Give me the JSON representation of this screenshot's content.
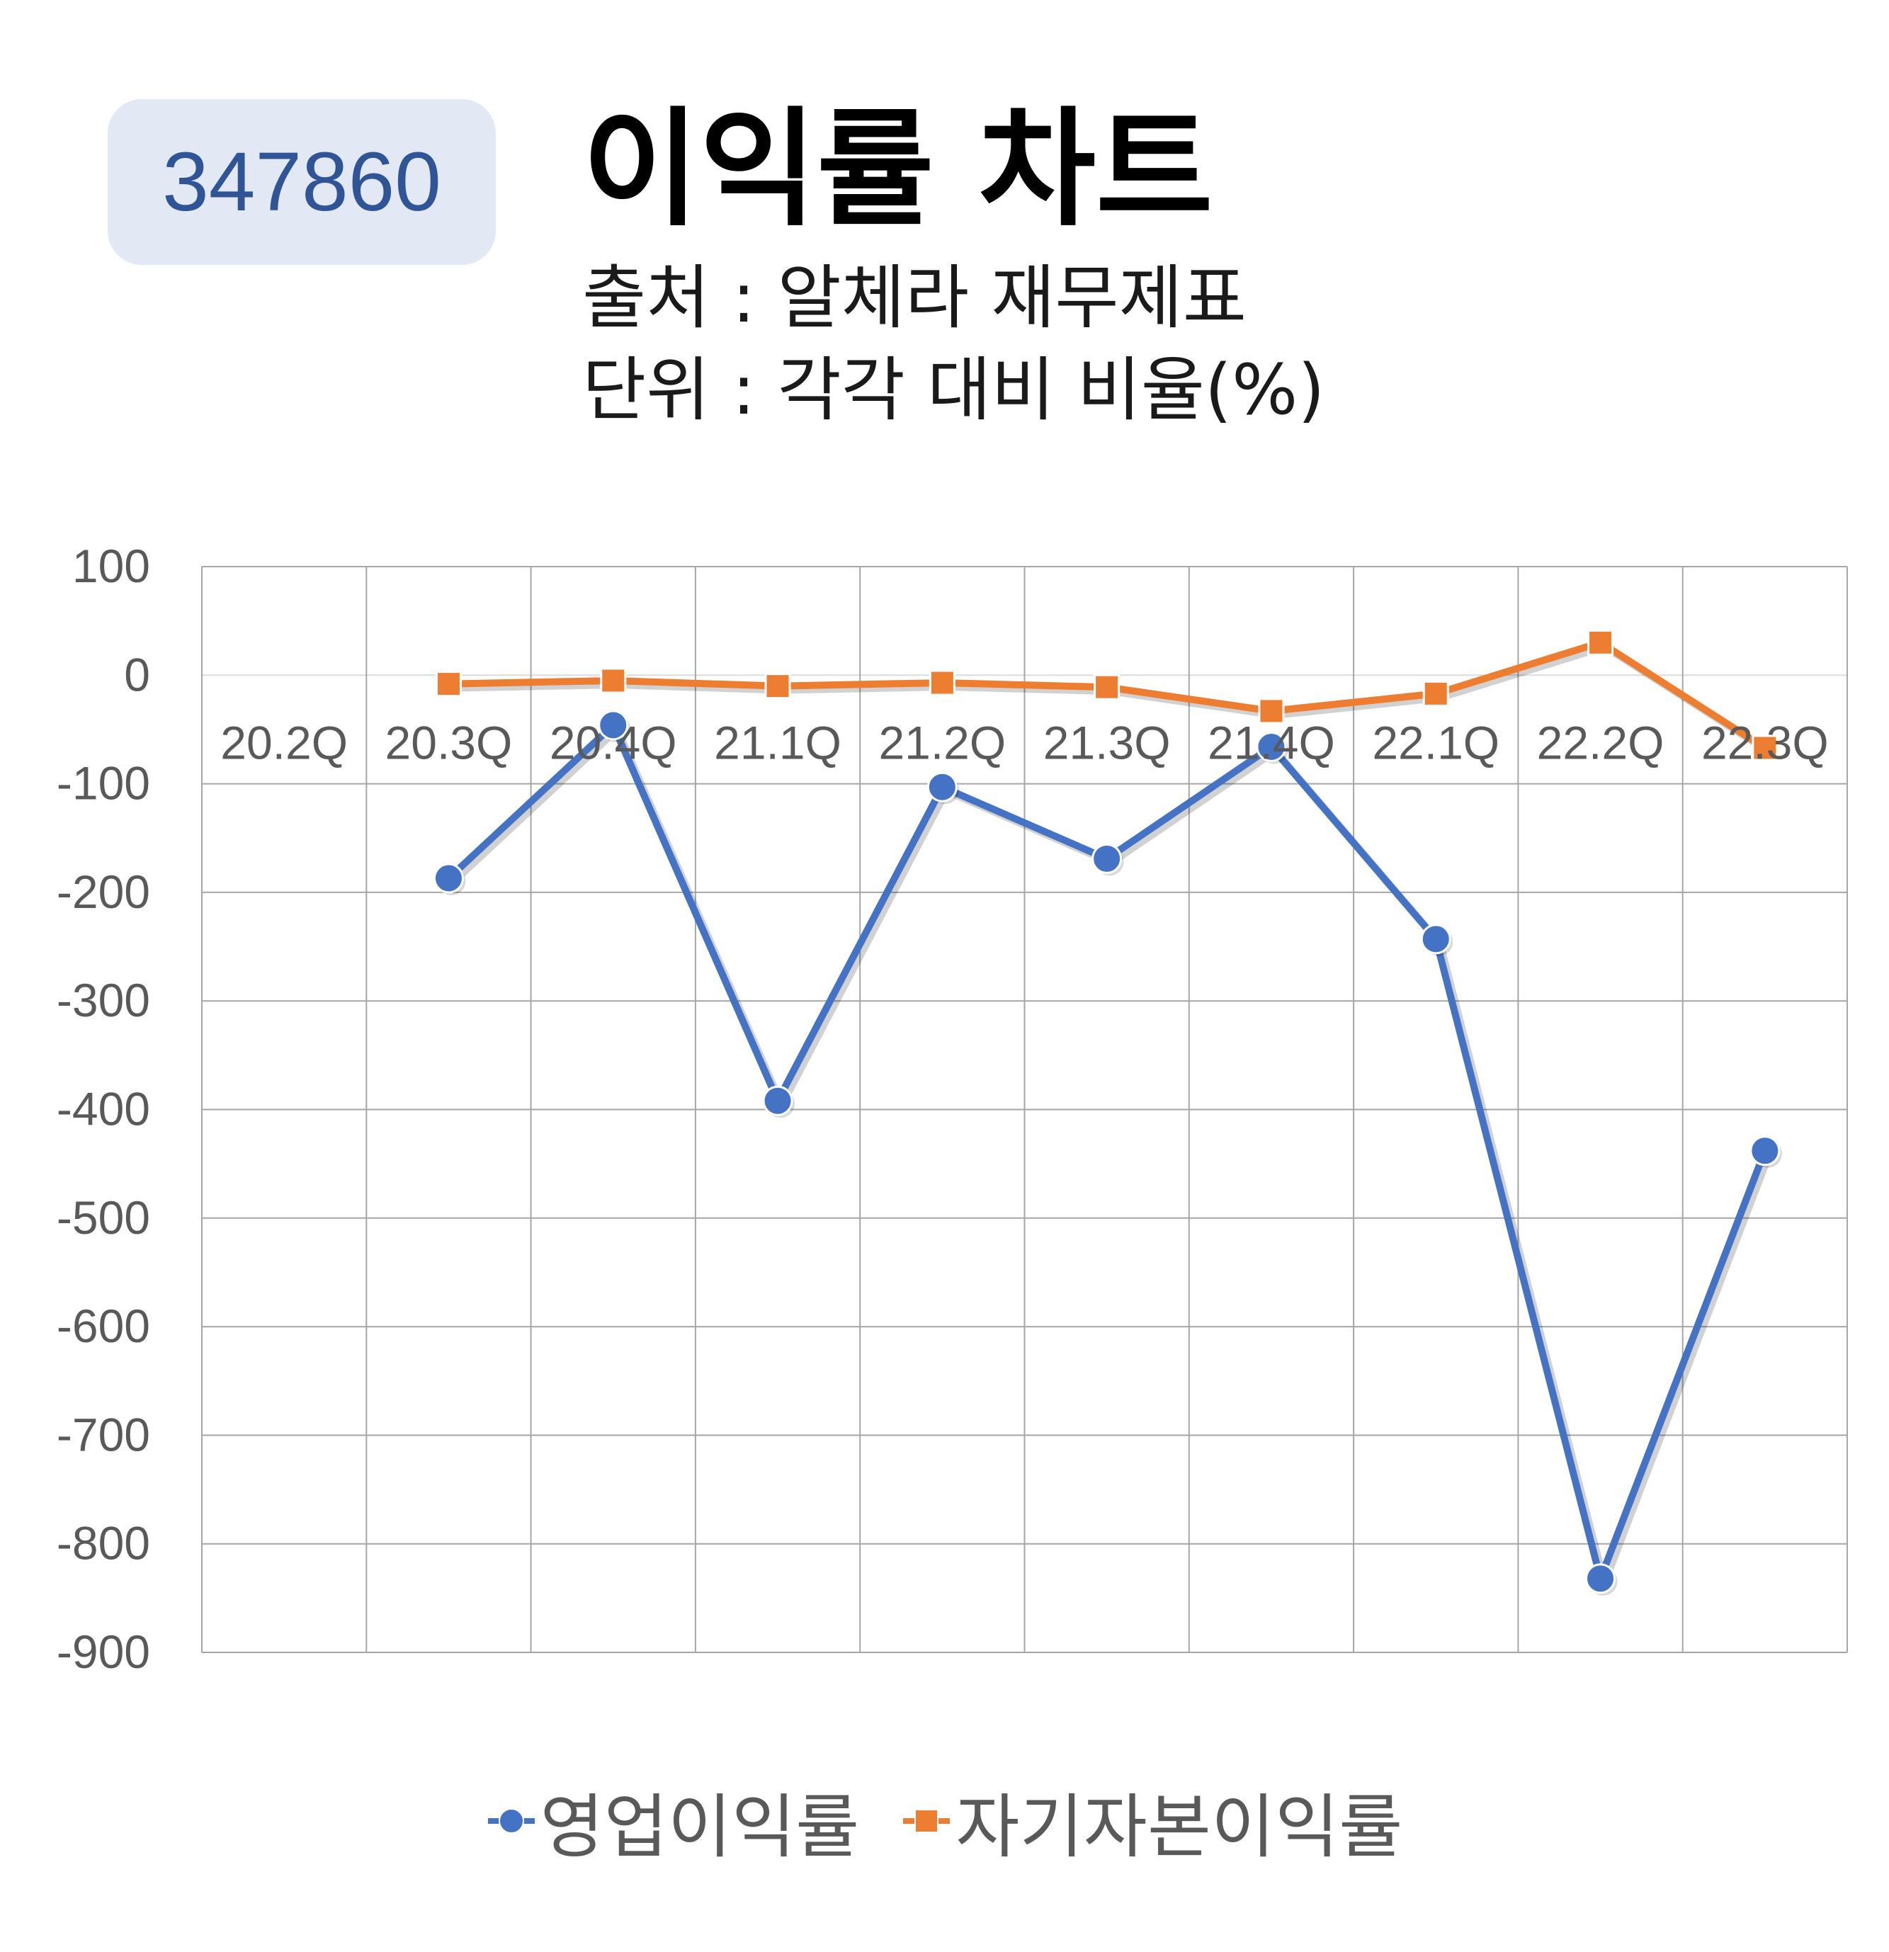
{
  "header": {
    "code": "347860",
    "title": "이익률 차트",
    "source": "출처 : 알체라 재무제표",
    "unit": "단위 : 각각 대비 비율(%)"
  },
  "colors": {
    "series1": "#4472c4",
    "series2": "#ed7d31",
    "grid": "#a6a6a6",
    "axis_text": "#595959"
  },
  "chart_data": {
    "type": "line",
    "categories": [
      "20.2Q",
      "20.3Q",
      "20.4Q",
      "21.1Q",
      "21.2Q",
      "21.3Q",
      "21.4Q",
      "22.1Q",
      "22.2Q",
      "22.3Q"
    ],
    "series": [
      {
        "name": "영업이익률",
        "marker": "circle",
        "values": [
          null,
          -187,
          -46,
          -392,
          -103,
          -169,
          -66,
          -243,
          -832,
          -438
        ]
      },
      {
        "name": "자기자본이익률",
        "marker": "square",
        "values": [
          null,
          -8,
          -5,
          -10,
          -7,
          -11,
          -33,
          -17,
          30,
          -67
        ]
      }
    ],
    "y_ticks": [
      "100",
      "0",
      "-100",
      "-200",
      "-300",
      "-400",
      "-500",
      "-600",
      "-700",
      "-800",
      "-900"
    ],
    "ylim": [
      -900,
      100
    ],
    "grid": true,
    "legend_position": "bottom"
  }
}
